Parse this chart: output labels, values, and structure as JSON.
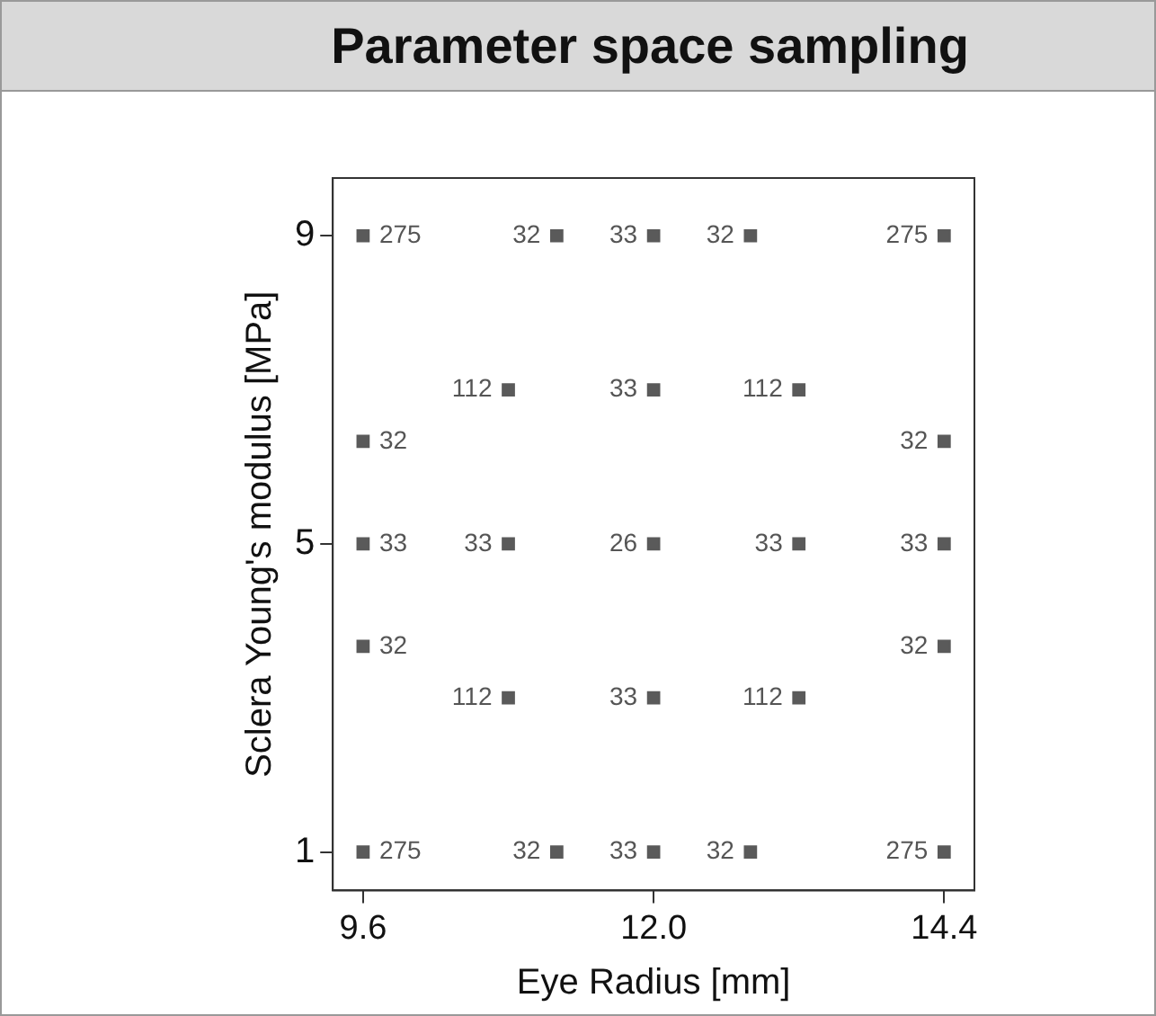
{
  "chart_data": {
    "type": "scatter",
    "title": "Parameter space sampling",
    "xlabel": "Eye Radius [mm]",
    "ylabel": "Sclera Young's modulus [MPa]",
    "x": [
      9.6,
      11.2,
      12.0,
      12.8,
      14.4,
      10.8,
      12.0,
      13.2,
      9.6,
      14.4,
      9.6,
      10.8,
      12.0,
      13.2,
      14.4,
      9.6,
      14.4,
      10.8,
      12.0,
      13.2,
      9.6,
      11.2,
      12.0,
      12.8,
      14.4
    ],
    "series": [
      {
        "color": "#5a5a5a",
        "values": [
          9,
          9,
          9,
          9,
          9,
          7,
          7,
          7,
          6.33,
          6.33,
          5,
          5,
          5,
          5,
          5,
          3.67,
          3.67,
          3,
          3,
          3,
          1,
          1,
          1,
          1,
          1
        ]
      }
    ],
    "annotations": [
      {
        "text": "275",
        "x": 9.6,
        "y": 9
      },
      {
        "text": "32",
        "x": 11.2,
        "y": 9
      },
      {
        "text": "33",
        "x": 12.0,
        "y": 9
      },
      {
        "text": "32",
        "x": 12.8,
        "y": 9
      },
      {
        "text": "275",
        "x": 14.4,
        "y": 9
      },
      {
        "text": "112",
        "x": 10.8,
        "y": 7
      },
      {
        "text": "33",
        "x": 12.0,
        "y": 7
      },
      {
        "text": "112",
        "x": 13.2,
        "y": 7
      },
      {
        "text": "32",
        "x": 9.6,
        "y": 6.33
      },
      {
        "text": "32",
        "x": 14.4,
        "y": 6.33
      },
      {
        "text": "33",
        "x": 9.6,
        "y": 5
      },
      {
        "text": "33",
        "x": 10.8,
        "y": 5
      },
      {
        "text": "26",
        "x": 12.0,
        "y": 5
      },
      {
        "text": "33",
        "x": 13.2,
        "y": 5
      },
      {
        "text": "33",
        "x": 14.4,
        "y": 5
      },
      {
        "text": "32",
        "x": 9.6,
        "y": 3.67
      },
      {
        "text": "32",
        "x": 14.4,
        "y": 3.67
      },
      {
        "text": "112",
        "x": 10.8,
        "y": 3
      },
      {
        "text": "33",
        "x": 12.0,
        "y": 3
      },
      {
        "text": "112",
        "x": 13.2,
        "y": 3
      },
      {
        "text": "275",
        "x": 9.6,
        "y": 1
      },
      {
        "text": "32",
        "x": 11.2,
        "y": 1
      },
      {
        "text": "33",
        "x": 12.0,
        "y": 1
      },
      {
        "text": "32",
        "x": 12.8,
        "y": 1
      },
      {
        "text": "275",
        "x": 14.4,
        "y": 1
      }
    ],
    "xlim": [
      9.35,
      14.65
    ],
    "ylim": [
      0.5,
      9.75
    ],
    "xticks": [
      9.6,
      {
        "value": 12,
        "label": "12.0"
      },
      14.4
    ],
    "yticks": [
      1,
      5,
      9
    ],
    "grid": false,
    "legend": false,
    "marker": "square"
  }
}
